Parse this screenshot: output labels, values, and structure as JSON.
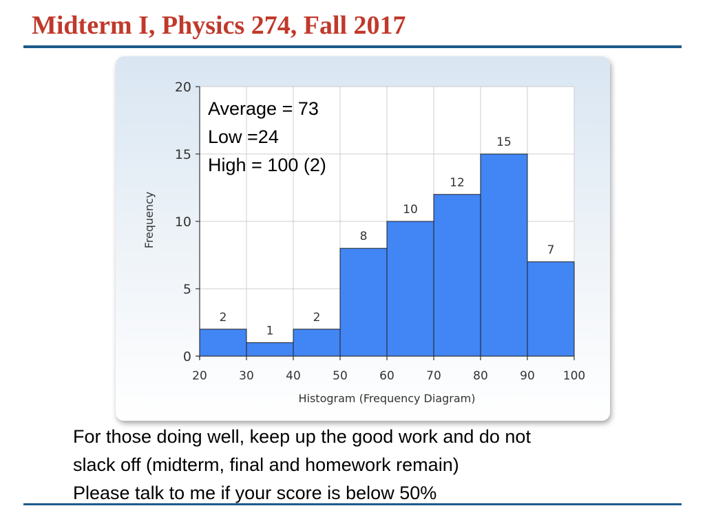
{
  "slide": {
    "title": "Midterm I, Physics 274, Fall 2017"
  },
  "stats": {
    "average": "Average = 73",
    "low": "Low =24",
    "high": "High = 100 (2)"
  },
  "note": {
    "line1": "For  those doing well, keep up the good work and do not",
    "line2": "slack off (midterm, final and homework remain)",
    "line3": "Please talk to me if your score is below 50%"
  },
  "colors": {
    "title": "#c0392b",
    "rule": "#1a5a8a",
    "bar": "#4285f4",
    "grid": "#cccccc"
  },
  "chart_data": {
    "type": "bar",
    "bins": [
      [
        20,
        30
      ],
      [
        30,
        40
      ],
      [
        40,
        50
      ],
      [
        50,
        60
      ],
      [
        60,
        70
      ],
      [
        70,
        80
      ],
      [
        80,
        90
      ],
      [
        90,
        100
      ]
    ],
    "values": [
      2,
      1,
      2,
      8,
      10,
      12,
      15,
      7
    ],
    "data_labels": [
      "2",
      "1",
      "2",
      "8",
      "10",
      "12",
      "15",
      "7"
    ],
    "x_ticks": [
      "20",
      "30",
      "40",
      "50",
      "60",
      "70",
      "80",
      "90",
      "100"
    ],
    "y_ticks": [
      "0",
      "5",
      "10",
      "15",
      "20"
    ],
    "xlim": [
      20,
      100
    ],
    "ylim": [
      0,
      20
    ],
    "xlabel": "Histogram (Frequency Diagram)",
    "ylabel": "Frequency",
    "grid": true,
    "legend": "none"
  }
}
